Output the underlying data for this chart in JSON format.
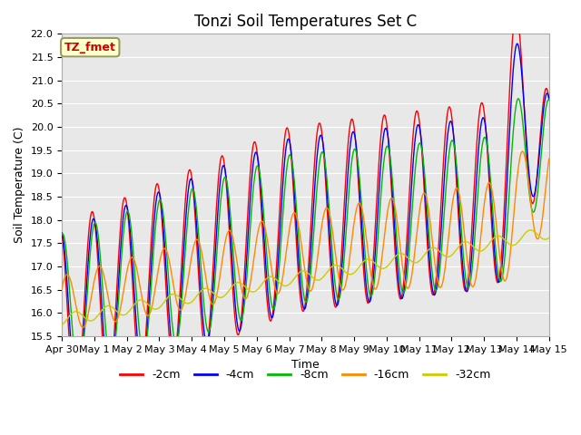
{
  "title": "Tonzi Soil Temperatures Set C",
  "xlabel": "Time",
  "ylabel": "Soil Temperature (C)",
  "ylim": [
    15.5,
    22.0
  ],
  "xlim": [
    0,
    15
  ],
  "xtick_labels": [
    "Apr 30",
    "May 1",
    "May 2",
    "May 3",
    "May 4",
    "May 5",
    "May 6",
    "May 7",
    "May 8",
    "May 9",
    "May 10",
    "May 11",
    "May 12",
    "May 13",
    "May 14",
    "May 15"
  ],
  "legend_labels": [
    "-2cm",
    "-4cm",
    "-8cm",
    "-16cm",
    "-32cm"
  ],
  "line_colors": [
    "#ff0000",
    "#0000ff",
    "#00bb00",
    "#ff8800",
    "#cccc00"
  ],
  "annotation_text": "TZ_fmet",
  "annotation_color": "#cc0000",
  "annotation_bg": "#ffffcc",
  "annotation_border": "#999966",
  "fig_bg": "#ffffff",
  "plot_bg": "#e8e8e8",
  "grid_color": "#ffffff",
  "title_fontsize": 12,
  "axis_fontsize": 9,
  "tick_fontsize": 8,
  "legend_fontsize": 9
}
